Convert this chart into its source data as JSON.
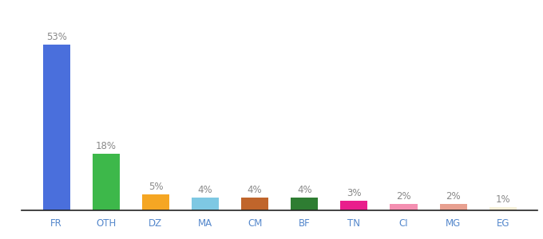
{
  "categories": [
    "FR",
    "OTH",
    "DZ",
    "MA",
    "CM",
    "BF",
    "TN",
    "CI",
    "MG",
    "EG"
  ],
  "values": [
    53,
    18,
    5,
    4,
    4,
    4,
    3,
    2,
    2,
    1
  ],
  "bar_colors": [
    "#4a6fdc",
    "#3db84a",
    "#f5a623",
    "#7ec8e3",
    "#c0652b",
    "#2e7d32",
    "#e91e8c",
    "#f48fb1",
    "#e8a090",
    "#f5f0d8"
  ],
  "labels": [
    "53%",
    "18%",
    "5%",
    "4%",
    "4%",
    "4%",
    "3%",
    "2%",
    "2%",
    "1%"
  ],
  "ylim": [
    0,
    62
  ],
  "background_color": "#ffffff",
  "label_fontsize": 8.5,
  "tick_fontsize": 8.5,
  "label_color": "#888888",
  "tick_color": "#5588cc",
  "bar_width": 0.55
}
